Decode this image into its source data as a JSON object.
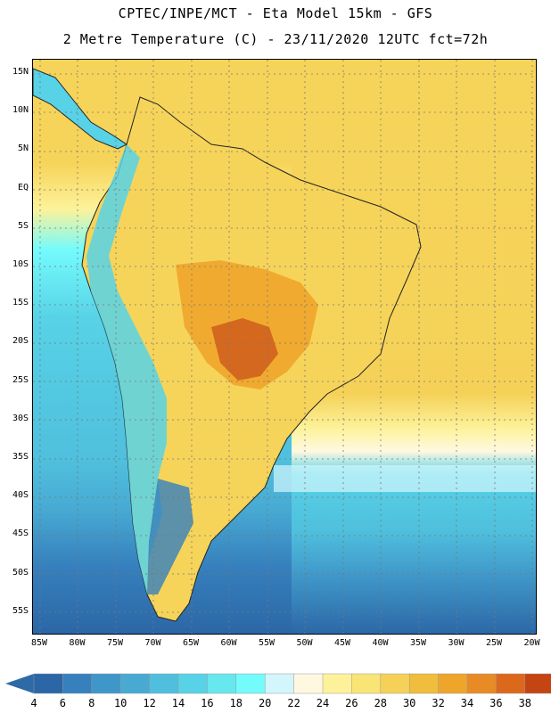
{
  "header": {
    "line1": "CPTEC/INPE/MCT -  Eta Model 15km - GFS",
    "line2": "2 Metre Temperature (C) - 23/11/2020 12UTC fct=72h"
  },
  "map": {
    "lat_labels": [
      "15N",
      "10N",
      "5N",
      "EQ",
      "5S",
      "10S",
      "15S",
      "20S",
      "25S",
      "30S",
      "35S",
      "40S",
      "45S",
      "50S",
      "55S"
    ],
    "lon_labels": [
      "85W",
      "80W",
      "75W",
      "70W",
      "65W",
      "60W",
      "55W",
      "50W",
      "45W",
      "40W",
      "35W",
      "30W",
      "25W",
      "20W"
    ]
  },
  "colorbar": {
    "labels": [
      "4",
      "6",
      "8",
      "10",
      "12",
      "14",
      "16",
      "18",
      "20",
      "22",
      "24",
      "26",
      "28",
      "30",
      "32",
      "34",
      "36",
      "38"
    ],
    "colors": [
      "#2b66a6",
      "#3680bd",
      "#3f96c8",
      "#48aad3",
      "#4fbfdd",
      "#57d2e6",
      "#66e8ee",
      "#74fbfc",
      "#d3f6fc",
      "#fff8e1",
      "#fdf29a",
      "#f9e476",
      "#f5d158",
      "#f0bd3c",
      "#efa52a",
      "#e88b25",
      "#dc681c",
      "#c44412"
    ],
    "low_color": "#2e6aa6",
    "high_color": "#b33c10"
  },
  "fields": {
    "ocean": "#2f72b5",
    "land_warm": "#f6d45a",
    "land_hot": "#e99429",
    "land_very_hot": "#cf5d1c"
  }
}
